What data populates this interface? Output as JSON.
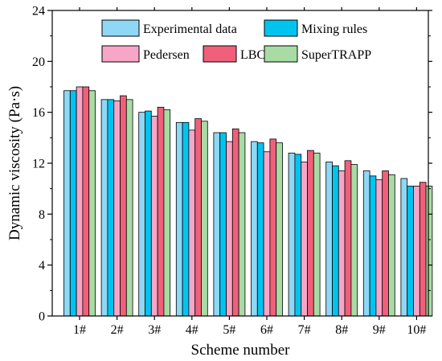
{
  "chart_data": {
    "type": "bar",
    "title": "",
    "xlabel": "Scheme number",
    "ylabel": "Dynamic viscosity (Pa·s)",
    "ylim": [
      0,
      24
    ],
    "yticks": [
      0,
      4,
      8,
      12,
      16,
      20,
      24
    ],
    "categories": [
      "1#",
      "2#",
      "3#",
      "4#",
      "5#",
      "6#",
      "7#",
      "8#",
      "9#",
      "10#"
    ],
    "series": [
      {
        "name": "Experimental data",
        "color": "#8ed8f5",
        "values": [
          17.7,
          17.0,
          16.0,
          15.2,
          14.4,
          13.7,
          12.8,
          12.1,
          11.4,
          10.8
        ]
      },
      {
        "name": "Mixing rules",
        "color": "#00c4f0",
        "values": [
          17.7,
          17.0,
          16.1,
          15.2,
          14.4,
          13.6,
          12.7,
          11.8,
          11.0,
          10.2
        ]
      },
      {
        "name": "Pedersen",
        "color": "#f7a6c7",
        "values": [
          18.0,
          16.9,
          15.7,
          14.6,
          13.7,
          12.9,
          12.1,
          11.4,
          10.7,
          10.2
        ]
      },
      {
        "name": "LBC",
        "color": "#f0607a",
        "values": [
          18.0,
          17.3,
          16.4,
          15.5,
          14.7,
          13.9,
          13.0,
          12.2,
          11.4,
          10.5
        ]
      },
      {
        "name": "SuperTRAPP",
        "color": "#a9dba4",
        "values": [
          17.7,
          17.0,
          16.2,
          15.3,
          14.4,
          13.6,
          12.8,
          11.9,
          11.1,
          10.2
        ]
      }
    ],
    "legend_position": "top-right",
    "grid": false
  }
}
